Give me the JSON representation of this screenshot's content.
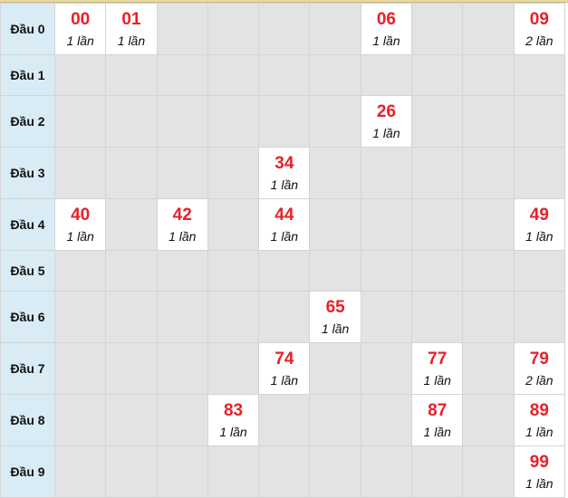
{
  "rows": [
    {
      "label": "Đầu 0",
      "cells": [
        {
          "num": "00",
          "count": "1 lần"
        },
        {
          "num": "01",
          "count": "1 lần"
        },
        null,
        null,
        null,
        null,
        {
          "num": "06",
          "count": "1 lần"
        },
        null,
        null,
        {
          "num": "09",
          "count": "2 lần"
        }
      ]
    },
    {
      "label": "Đầu 1",
      "cells": [
        null,
        null,
        null,
        null,
        null,
        null,
        null,
        null,
        null,
        null
      ]
    },
    {
      "label": "Đầu 2",
      "cells": [
        null,
        null,
        null,
        null,
        null,
        null,
        {
          "num": "26",
          "count": "1 lần"
        },
        null,
        null,
        null
      ]
    },
    {
      "label": "Đầu 3",
      "cells": [
        null,
        null,
        null,
        null,
        {
          "num": "34",
          "count": "1 lần"
        },
        null,
        null,
        null,
        null,
        null
      ]
    },
    {
      "label": "Đầu 4",
      "cells": [
        {
          "num": "40",
          "count": "1 lần"
        },
        null,
        {
          "num": "42",
          "count": "1 lần"
        },
        null,
        {
          "num": "44",
          "count": "1 lần"
        },
        null,
        null,
        null,
        null,
        {
          "num": "49",
          "count": "1 lần"
        }
      ]
    },
    {
      "label": "Đầu 5",
      "cells": [
        null,
        null,
        null,
        null,
        null,
        null,
        null,
        null,
        null,
        null
      ]
    },
    {
      "label": "Đầu 6",
      "cells": [
        null,
        null,
        null,
        null,
        null,
        {
          "num": "65",
          "count": "1 lần"
        },
        null,
        null,
        null,
        null
      ]
    },
    {
      "label": "Đầu 7",
      "cells": [
        null,
        null,
        null,
        null,
        {
          "num": "74",
          "count": "1 lần"
        },
        null,
        null,
        {
          "num": "77",
          "count": "1 lần"
        },
        null,
        {
          "num": "79",
          "count": "2 lần"
        }
      ]
    },
    {
      "label": "Đầu 8",
      "cells": [
        null,
        null,
        null,
        {
          "num": "83",
          "count": "1 lần"
        },
        null,
        null,
        null,
        {
          "num": "87",
          "count": "1 lần"
        },
        null,
        {
          "num": "89",
          "count": "1 lần"
        }
      ]
    },
    {
      "label": "Đầu 9",
      "cells": [
        null,
        null,
        null,
        null,
        null,
        null,
        null,
        null,
        null,
        {
          "num": "99",
          "count": "1 lần"
        }
      ]
    }
  ],
  "colors": {
    "number": "#e8202a",
    "header_bg": "#d9ecf6",
    "empty_bg": "#e2e3e5",
    "hit_bg": "#ffffff"
  }
}
